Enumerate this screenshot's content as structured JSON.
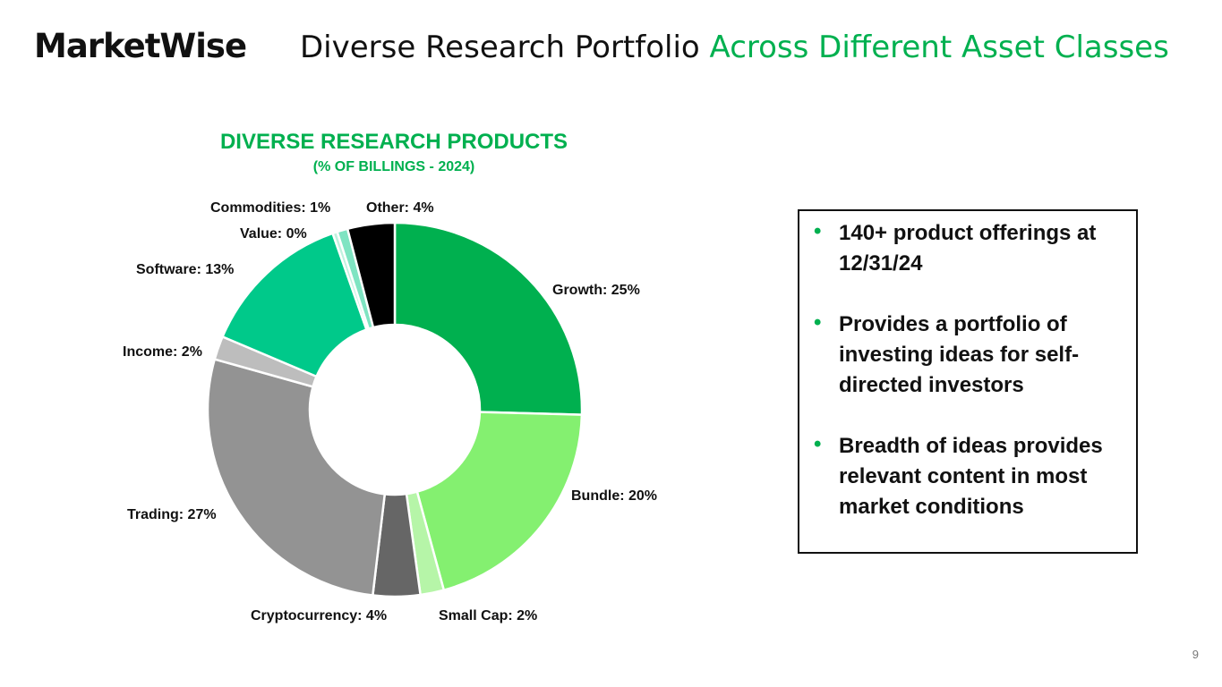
{
  "header": {
    "logo": "MarketWise",
    "title_main": "Diverse Research Portfolio",
    "title_accent": "Across Different Asset Classes"
  },
  "chart_data": {
    "type": "pie",
    "variant": "donut",
    "title": "DIVERSE RESEARCH PRODUCTS",
    "subtitle": "(% OF BILLINGS - 2024)",
    "slices": [
      {
        "label": "Growth",
        "display": "Growth: 25%",
        "value": 25,
        "color": "#00b04f"
      },
      {
        "label": "Bundle",
        "display": "Bundle: 20%",
        "value": 20,
        "color": "#84f070"
      },
      {
        "label": "Small Cap",
        "display": "Small Cap: 2%",
        "value": 2,
        "color": "#b6f5a8"
      },
      {
        "label": "Cryptocurrency",
        "display": "Cryptocurrency: 4%",
        "value": 4,
        "color": "#666666"
      },
      {
        "label": "Trading",
        "display": "Trading: 27%",
        "value": 27,
        "color": "#939393"
      },
      {
        "label": "Income",
        "display": "Income: 2%",
        "value": 2,
        "color": "#bdbdbd"
      },
      {
        "label": "Software",
        "display": "Software: 13%",
        "value": 13,
        "color": "#00c98a"
      },
      {
        "label": "Value",
        "display": "Value: 0%",
        "value": 0.4,
        "color": "#bff2de"
      },
      {
        "label": "Commodities",
        "display": "Commodities: 1%",
        "value": 0.9,
        "color": "#7fe4c2"
      },
      {
        "label": "Other",
        "display": "Other: 4%",
        "value": 4,
        "color": "#000000"
      }
    ]
  },
  "bullets": [
    "140+ product offerings at 12/31/24",
    "Provides a portfolio of investing ideas for self-directed investors",
    "Breadth of ideas provides relevant content in most market conditions"
  ],
  "bullet_marker": "•",
  "page_number": "9"
}
